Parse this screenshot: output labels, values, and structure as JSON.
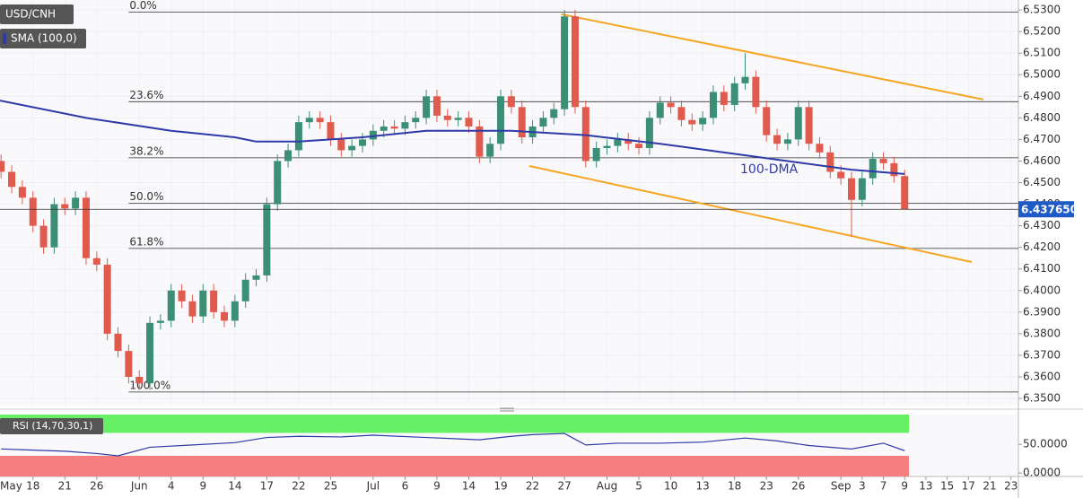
{
  "chart_data": {
    "type": "candlestick",
    "title": "USD/CNH",
    "sma_label": "SMA (100,0)",
    "annotation": "100-DMA",
    "current_price": 6.43765,
    "current_price_label": "6.437650",
    "xlim": [
      -0.1,
      95.7
    ],
    "xticks": [
      {
        "value": 3,
        "label": "18"
      },
      {
        "value": 6,
        "label": "21"
      },
      {
        "value": 9,
        "label": "26"
      },
      {
        "value": 13,
        "label": "Jun"
      },
      {
        "value": 16,
        "label": "4"
      },
      {
        "value": 19,
        "label": "9"
      },
      {
        "value": 22,
        "label": "14"
      },
      {
        "value": 25,
        "label": "17"
      },
      {
        "value": 28,
        "label": "22"
      },
      {
        "value": 31,
        "label": "25"
      },
      {
        "value": 35,
        "label": "Jul"
      },
      {
        "value": 38,
        "label": "6"
      },
      {
        "value": 41,
        "label": "9"
      },
      {
        "value": 44,
        "label": "14"
      },
      {
        "value": 47,
        "label": "19"
      },
      {
        "value": 50,
        "label": "22"
      },
      {
        "value": 53,
        "label": "27"
      },
      {
        "value": 57,
        "label": "Aug"
      },
      {
        "value": 60,
        "label": "5"
      },
      {
        "value": 63,
        "label": "10"
      },
      {
        "value": 66,
        "label": "13"
      },
      {
        "value": 69,
        "label": "18"
      },
      {
        "value": 72,
        "label": "23"
      },
      {
        "value": 75,
        "label": "26"
      },
      {
        "value": 79,
        "label": "Sep"
      },
      {
        "value": 81,
        "label": "3"
      },
      {
        "value": 83,
        "label": "7"
      },
      {
        "value": 85,
        "label": "9"
      },
      {
        "value": 87,
        "label": "13"
      },
      {
        "value": 89,
        "label": "15"
      },
      {
        "value": 91,
        "label": "17"
      },
      {
        "value": 93,
        "label": "21"
      },
      {
        "value": 95,
        "label": "23"
      }
    ],
    "first_label": "May",
    "ylim": [
      6.3467,
      6.5346
    ],
    "yticks": [
      {
        "value": 6.35,
        "label": "6.3500"
      },
      {
        "value": 6.36,
        "label": "6.3600"
      },
      {
        "value": 6.37,
        "label": "6.3700"
      },
      {
        "value": 6.38,
        "label": "6.3800"
      },
      {
        "value": 6.39,
        "label": "6.3900"
      },
      {
        "value": 6.4,
        "label": "6.4000"
      },
      {
        "value": 6.41,
        "label": "6.4100"
      },
      {
        "value": 6.42,
        "label": "6.4200"
      },
      {
        "value": 6.43,
        "label": "6.4300"
      },
      {
        "value": 6.44,
        "label": "6.4400"
      },
      {
        "value": 6.45,
        "label": "6.4500"
      },
      {
        "value": 6.46,
        "label": "6.4600"
      },
      {
        "value": 6.47,
        "label": "6.4700"
      },
      {
        "value": 6.48,
        "label": "6.4800"
      },
      {
        "value": 6.49,
        "label": "6.4900"
      },
      {
        "value": 6.5,
        "label": "6.5000"
      },
      {
        "value": 6.51,
        "label": "6.5100"
      },
      {
        "value": 6.52,
        "label": "6.5200"
      },
      {
        "value": 6.53,
        "label": "6.5300"
      }
    ],
    "up_color": "#3b8f74",
    "down_color": "#e05a4e",
    "open": [
      6.46,
      6.455,
      6.448,
      6.443,
      6.43,
      6.42,
      6.44,
      6.438,
      6.443,
      6.415,
      6.412,
      6.38,
      6.372,
      6.36,
      6.357,
      6.385,
      6.386,
      6.4,
      6.395,
      6.388,
      6.4,
      6.39,
      6.386,
      6.395,
      6.405,
      6.407,
      6.44,
      6.46,
      6.465,
      6.478,
      6.48,
      6.478,
      6.47,
      6.465,
      6.467,
      6.47,
      6.474,
      6.476,
      6.475,
      6.478,
      6.48,
      6.49,
      6.481,
      6.479,
      6.48,
      6.476,
      6.462,
      6.468,
      6.49,
      6.485,
      6.471,
      6.476,
      6.48,
      6.484,
      6.527,
      6.485,
      6.46,
      6.466,
      6.467,
      6.47,
      6.468,
      6.466,
      6.48,
      6.487,
      6.485,
      6.479,
      6.477,
      6.48,
      6.492,
      6.486,
      6.496,
      6.499,
      6.485,
      6.472,
      6.468,
      6.47,
      6.485,
      6.468,
      6.464,
      6.455,
      6.452,
      6.442,
      6.452,
      6.461,
      6.459,
      6.453
    ],
    "high": [
      6.463,
      6.458,
      6.451,
      6.446,
      6.433,
      6.443,
      6.443,
      6.446,
      6.446,
      6.418,
      6.415,
      6.383,
      6.375,
      6.363,
      6.388,
      6.389,
      6.403,
      6.403,
      6.398,
      6.403,
      6.403,
      6.393,
      6.398,
      6.408,
      6.41,
      6.443,
      6.463,
      6.468,
      6.481,
      6.483,
      6.483,
      6.481,
      6.473,
      6.47,
      6.473,
      6.477,
      6.479,
      6.479,
      6.481,
      6.483,
      6.493,
      6.493,
      6.484,
      6.483,
      6.483,
      6.479,
      6.471,
      6.493,
      6.493,
      6.488,
      6.479,
      6.483,
      6.487,
      6.53,
      6.53,
      6.488,
      6.469,
      6.47,
      6.473,
      6.473,
      6.471,
      6.483,
      6.49,
      6.49,
      6.488,
      6.482,
      6.483,
      6.495,
      6.495,
      6.499,
      6.51,
      6.502,
      6.488,
      6.475,
      6.473,
      6.488,
      6.488,
      6.471,
      6.467,
      6.458,
      6.455,
      6.455,
      6.464,
      6.464,
      6.462,
      6.456
    ],
    "low": [
      6.452,
      6.445,
      6.44,
      6.427,
      6.417,
      6.417,
      6.435,
      6.435,
      6.412,
      6.409,
      6.377,
      6.369,
      6.357,
      6.354,
      6.354,
      6.382,
      6.383,
      6.392,
      6.385,
      6.385,
      6.387,
      6.383,
      6.383,
      6.392,
      6.402,
      6.404,
      6.437,
      6.457,
      6.462,
      6.475,
      6.475,
      6.467,
      6.462,
      6.462,
      6.464,
      6.467,
      6.471,
      6.472,
      6.472,
      6.475,
      6.477,
      6.478,
      6.476,
      6.476,
      6.473,
      6.459,
      6.459,
      6.465,
      6.482,
      6.468,
      6.468,
      6.473,
      6.477,
      6.481,
      6.482,
      6.457,
      6.457,
      6.463,
      6.464,
      6.465,
      6.463,
      6.463,
      6.477,
      6.482,
      6.476,
      6.474,
      6.474,
      6.477,
      6.483,
      6.483,
      6.493,
      6.482,
      6.469,
      6.465,
      6.465,
      6.467,
      6.465,
      6.461,
      6.452,
      6.449,
      6.425,
      6.439,
      6.449,
      6.456,
      6.45,
      6.43765
    ],
    "close": [
      6.455,
      6.448,
      6.443,
      6.43,
      6.42,
      6.44,
      6.438,
      6.443,
      6.415,
      6.412,
      6.38,
      6.372,
      6.36,
      6.357,
      6.385,
      6.386,
      6.4,
      6.395,
      6.388,
      6.4,
      6.39,
      6.386,
      6.395,
      6.405,
      6.407,
      6.44,
      6.46,
      6.465,
      6.478,
      6.48,
      6.478,
      6.47,
      6.465,
      6.467,
      6.47,
      6.474,
      6.476,
      6.475,
      6.478,
      6.48,
      6.49,
      6.481,
      6.479,
      6.48,
      6.476,
      6.462,
      6.468,
      6.49,
      6.485,
      6.471,
      6.476,
      6.48,
      6.484,
      6.527,
      6.485,
      6.46,
      6.466,
      6.467,
      6.47,
      6.468,
      6.466,
      6.48,
      6.487,
      6.485,
      6.479,
      6.477,
      6.48,
      6.492,
      6.486,
      6.496,
      6.499,
      6.485,
      6.472,
      6.468,
      6.47,
      6.485,
      6.468,
      6.464,
      6.455,
      6.452,
      6.442,
      6.452,
      6.461,
      6.459,
      6.453,
      6.43765
    ],
    "sma": {
      "name": "100-DMA",
      "color": "#2e3aa8",
      "x": [
        -0.1,
        8,
        16,
        22,
        24,
        28,
        34,
        40,
        48,
        55,
        62,
        68,
        74,
        80,
        85
      ],
      "values": [
        6.488,
        6.48,
        6.474,
        6.471,
        6.469,
        6.469,
        6.471,
        6.474,
        6.474,
        6.472,
        6.468,
        6.464,
        6.46,
        6.456,
        6.454
      ]
    },
    "fib": [
      {
        "label": "0.0%",
        "value": 6.529
      },
      {
        "label": "23.6%",
        "value": 6.4875
      },
      {
        "label": "38.2%",
        "value": 6.4615
      },
      {
        "label": "50.0%",
        "value": 6.4405
      },
      {
        "label": "61.8%",
        "value": 6.4195
      },
      {
        "label": "100.0%",
        "value": 6.353
      }
    ],
    "fib_start": 12,
    "trendlines": {
      "color": "#f6a623",
      "upper": {
        "x": [
          52.7,
          92.4
        ],
        "values": [
          6.528,
          6.4885
        ]
      },
      "lower": {
        "x": [
          49.7,
          91.3
        ],
        "values": [
          6.4577,
          6.4132
        ]
      }
    },
    "rsi": {
      "name": "RSI (14,70,30,1)",
      "color": "#2e3aa8",
      "y2lim": [
        -6,
        102
      ],
      "y2ticks": [
        {
          "value": 50,
          "label": "50.0000"
        },
        {
          "value": 0,
          "label": "0.0000"
        }
      ],
      "overbought": 70,
      "oversold": 30,
      "x": [
        0,
        3,
        6,
        9,
        11,
        14,
        18,
        22,
        25,
        28,
        32,
        35,
        40,
        45,
        48,
        50,
        53,
        55,
        58,
        62,
        66,
        70,
        73,
        76,
        80,
        83,
        85
      ],
      "values": [
        42,
        40,
        38,
        34,
        30,
        45,
        49,
        53,
        62,
        64,
        63,
        66,
        62,
        58,
        64,
        67,
        69,
        49,
        52,
        52,
        54,
        61,
        56,
        48,
        42,
        52,
        39
      ]
    }
  }
}
